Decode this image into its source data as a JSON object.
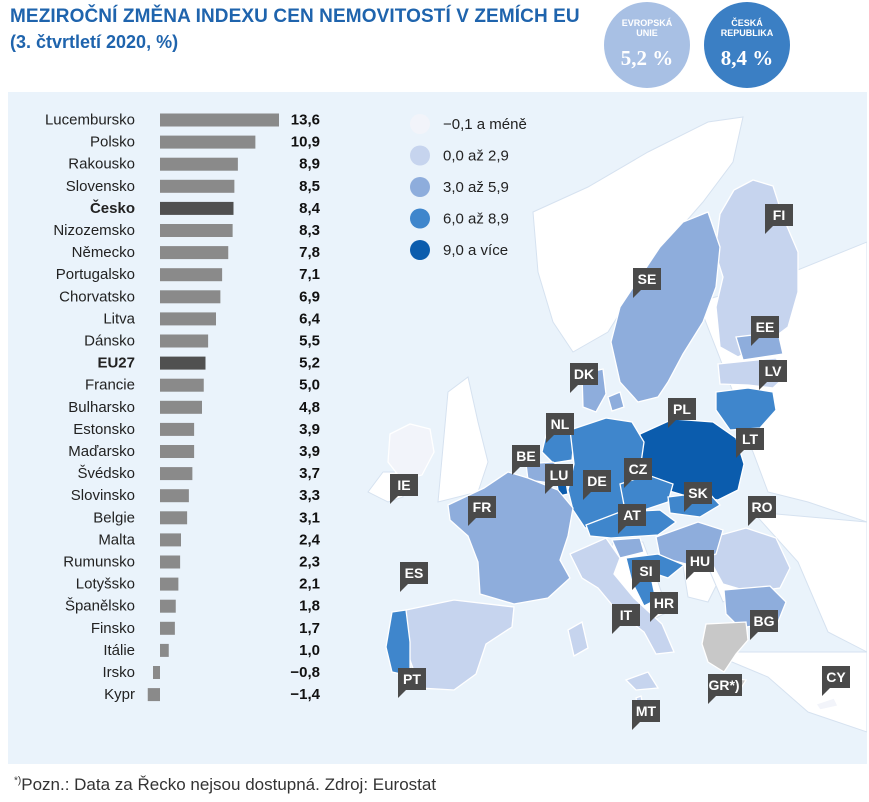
{
  "header": {
    "title": "MEZIROČNÍ ZMĚNA INDEXU CEN NEMOVITOSTÍ V ZEMÍCH EU",
    "subtitle": "(3. čtvrtletí 2020, %)"
  },
  "bubbles": {
    "eu_label": "EVROPSKÁ UNIE",
    "eu_value": "5,2 %",
    "cz_label": "ČESKÁ REPUBLIKA",
    "cz_value": "8,4 %"
  },
  "colors": {
    "bar": "#8a8a8a",
    "bar_highlight": "#505050",
    "panel_bg": "#eaf3fb",
    "water": "#eaf3fb",
    "land_nonEU": "#ffffff",
    "no_data": "#c8c8c8",
    "label_box": "#4a4a4a"
  },
  "chart_data": [
    {
      "type": "bar",
      "orientation": "horizontal",
      "categories": [
        "Lucembursko",
        "Polsko",
        "Rakousko",
        "Slovensko",
        "Česko",
        "Nizozemsko",
        "Německo",
        "Portugalsko",
        "Chorvatsko",
        "Litva",
        "Dánsko",
        "EU27",
        "Francie",
        "Bulharsko",
        "Estonsko",
        "Maďarsko",
        "Švédsko",
        "Slovinsko",
        "Belgie",
        "Malta",
        "Rumunsko",
        "Lotyšsko",
        "Španělsko",
        "Finsko",
        "Itálie",
        "Irsko",
        "Kypr"
      ],
      "values": [
        13.6,
        10.9,
        8.9,
        8.5,
        8.4,
        8.3,
        7.8,
        7.1,
        6.9,
        6.4,
        5.5,
        5.2,
        5.0,
        4.8,
        3.9,
        3.9,
        3.7,
        3.3,
        3.1,
        2.4,
        2.3,
        2.1,
        1.8,
        1.7,
        1.0,
        -0.8,
        -1.4
      ],
      "value_labels": [
        "13,6",
        "10,9",
        "8,9",
        "8,5",
        "8,4",
        "8,3",
        "7,8",
        "7,1",
        "6,9",
        "6,4",
        "5,5",
        "5,2",
        "5,0",
        "4,8",
        "3,9",
        "3,9",
        "3,7",
        "3,3",
        "3,1",
        "2,4",
        "2,3",
        "2,1",
        "1,8",
        "1,7",
        "1,0",
        "−0,8",
        "−1,4"
      ],
      "highlighted": [
        "Česko",
        "EU27"
      ],
      "grid": false
    },
    {
      "type": "choropleth",
      "legend": [
        {
          "label": "−0,1 a méně",
          "color": "#f2f4fa"
        },
        {
          "label": "0,0 až 2,9",
          "color": "#c6d4ee"
        },
        {
          "label": "3,0 až 5,9",
          "color": "#8eaddc"
        },
        {
          "label": "6,0 až 8,9",
          "color": "#3f86cc"
        },
        {
          "label": "9,0 a více",
          "color": "#0b5cad"
        }
      ],
      "countries": [
        {
          "code": "FI",
          "label": "FI",
          "value": 1.7
        },
        {
          "code": "SE",
          "label": "SE",
          "value": 3.7
        },
        {
          "code": "EE",
          "label": "EE",
          "value": 3.9
        },
        {
          "code": "LV",
          "label": "LV",
          "value": 2.1
        },
        {
          "code": "LT",
          "label": "LT",
          "value": 6.4
        },
        {
          "code": "DK",
          "label": "DK",
          "value": 5.5
        },
        {
          "code": "PL",
          "label": "PL",
          "value": 10.9
        },
        {
          "code": "NL",
          "label": "NL",
          "value": 8.3
        },
        {
          "code": "BE",
          "label": "BE",
          "value": 3.1
        },
        {
          "code": "LU",
          "label": "LU",
          "value": 13.6
        },
        {
          "code": "DE",
          "label": "DE",
          "value": 7.8
        },
        {
          "code": "CZ",
          "label": "CZ",
          "value": 8.4
        },
        {
          "code": "SK",
          "label": "SK",
          "value": 8.5
        },
        {
          "code": "AT",
          "label": "AT",
          "value": 8.9
        },
        {
          "code": "IE",
          "label": "IE",
          "value": -0.8
        },
        {
          "code": "FR",
          "label": "FR",
          "value": 5.0
        },
        {
          "code": "RO",
          "label": "RO",
          "value": 2.3
        },
        {
          "code": "HU",
          "label": "HU",
          "value": 3.9
        },
        {
          "code": "SI",
          "label": "SI",
          "value": 3.3
        },
        {
          "code": "HR",
          "label": "HR",
          "value": 6.9
        },
        {
          "code": "ES",
          "label": "ES",
          "value": 1.8
        },
        {
          "code": "IT",
          "label": "IT",
          "value": 1.0
        },
        {
          "code": "BG",
          "label": "BG",
          "value": 4.8
        },
        {
          "code": "PT",
          "label": "PT",
          "value": 7.1
        },
        {
          "code": "GR",
          "label": "GR*)",
          "value": null
        },
        {
          "code": "MT",
          "label": "MT",
          "value": 2.4
        },
        {
          "code": "CY",
          "label": "CY",
          "value": -1.4
        }
      ]
    }
  ],
  "footnote": {
    "mark": "*)",
    "text": "Pozn.: Data za Řecko nejsou dostupná. Zdroj: Eurostat"
  }
}
